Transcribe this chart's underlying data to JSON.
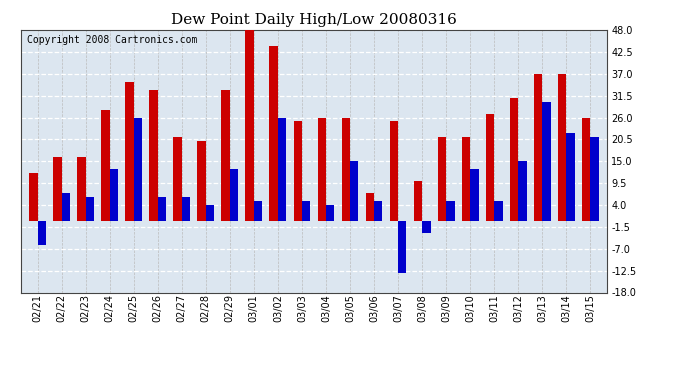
{
  "title": "Dew Point Daily High/Low 20080316",
  "copyright": "Copyright 2008 Cartronics.com",
  "dates": [
    "02/21",
    "02/22",
    "02/23",
    "02/24",
    "02/25",
    "02/26",
    "02/27",
    "02/28",
    "02/29",
    "03/01",
    "03/02",
    "03/03",
    "03/04",
    "03/05",
    "03/06",
    "03/07",
    "03/08",
    "03/09",
    "03/10",
    "03/11",
    "03/12",
    "03/13",
    "03/14",
    "03/15"
  ],
  "high": [
    12,
    16,
    16,
    28,
    35,
    33,
    21,
    20,
    33,
    48,
    44,
    25,
    26,
    26,
    7,
    25,
    10,
    21,
    21,
    27,
    31,
    37,
    37,
    26
  ],
  "low": [
    -6,
    7,
    6,
    13,
    26,
    6,
    6,
    4,
    13,
    5,
    26,
    5,
    4,
    15,
    5,
    -13,
    -3,
    5,
    13,
    5,
    15,
    30,
    22,
    21
  ],
  "ylim": [
    -18,
    48
  ],
  "yticks": [
    -18.0,
    -12.5,
    -7.0,
    -1.5,
    4.0,
    9.5,
    15.0,
    20.5,
    26.0,
    31.5,
    37.0,
    42.5,
    48.0
  ],
  "bar_width": 0.35,
  "high_color": "#cc0000",
  "low_color": "#0000cc",
  "bg_color": "#ffffff",
  "plot_bg_color": "#dce6f0",
  "grid_color": "#aaaaaa",
  "title_fontsize": 11,
  "copyright_fontsize": 7,
  "tick_fontsize": 7,
  "figsize": [
    6.9,
    3.75
  ],
  "dpi": 100
}
